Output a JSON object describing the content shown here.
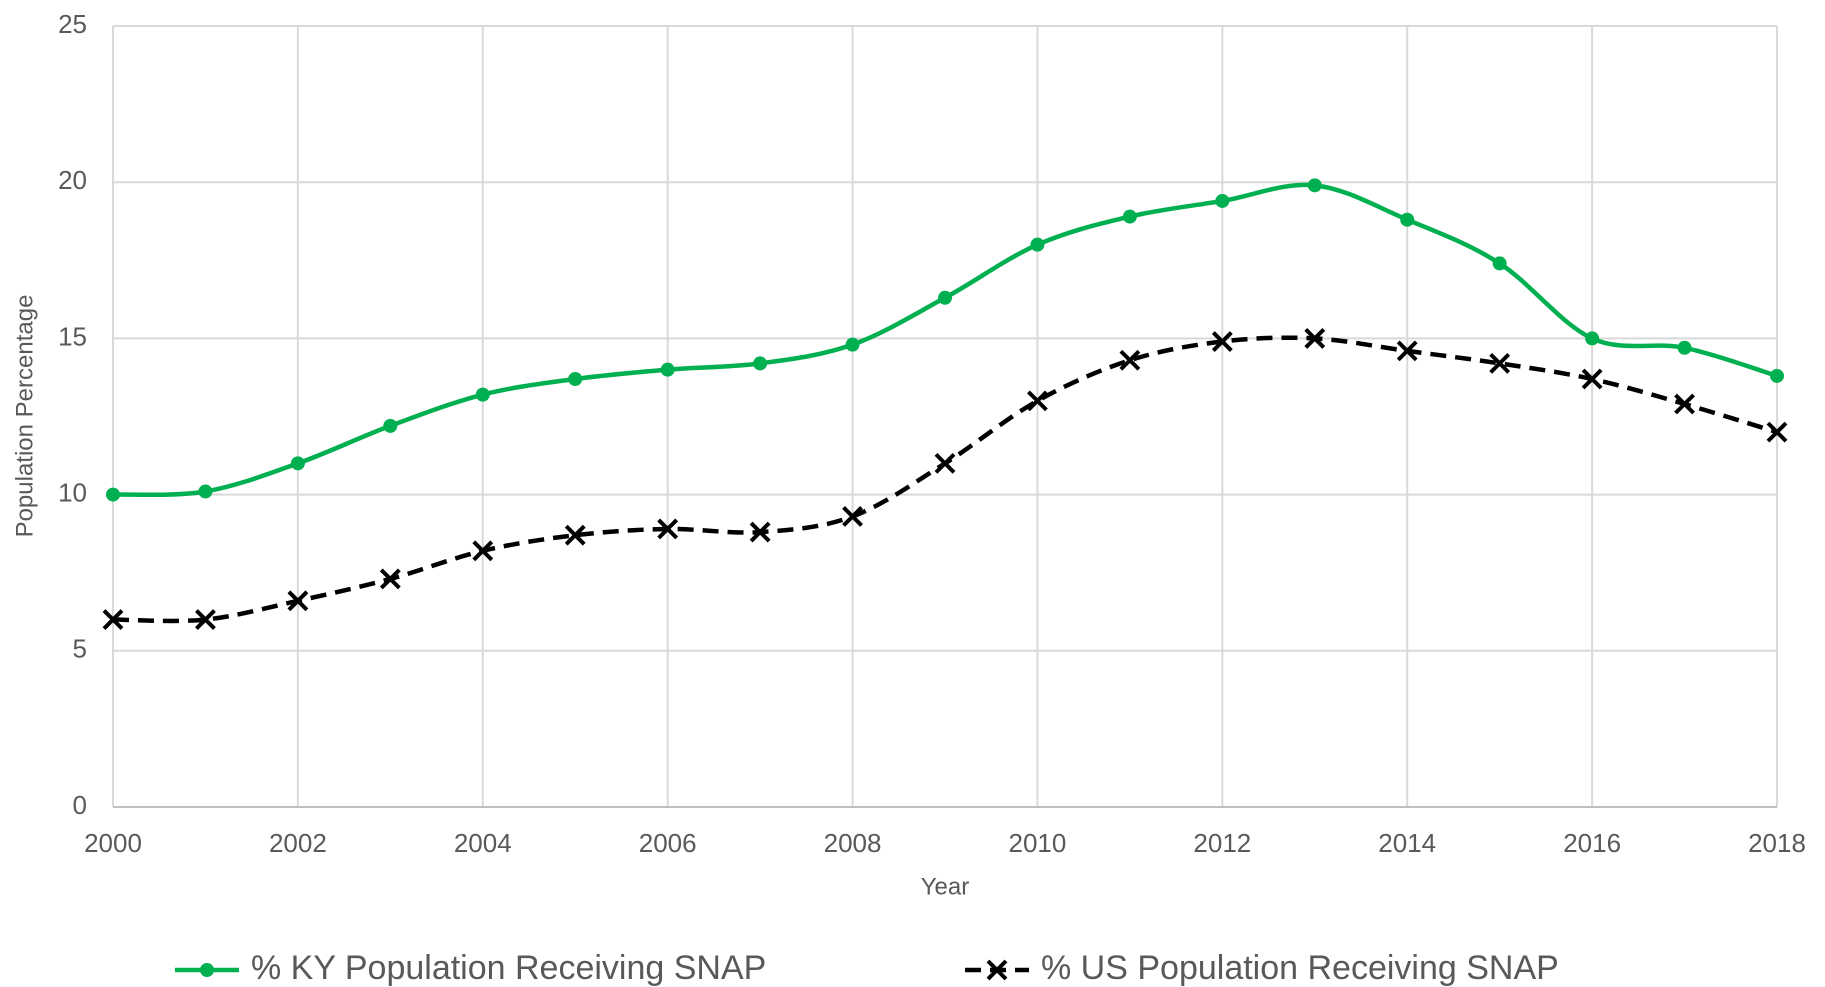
{
  "chart_data": {
    "type": "line",
    "x_label": "Year",
    "y_label": "Population Percentage",
    "x": [
      2000,
      2001,
      2002,
      2003,
      2004,
      2005,
      2006,
      2007,
      2008,
      2009,
      2010,
      2011,
      2012,
      2013,
      2014,
      2015,
      2016,
      2017,
      2018
    ],
    "series": [
      {
        "name": "% KY Population Receiving SNAP",
        "color": "#00b050",
        "marker": "circle",
        "dash": "solid",
        "smooth": true,
        "values": [
          10.0,
          10.1,
          11.0,
          12.2,
          13.2,
          13.7,
          14.0,
          14.2,
          14.8,
          16.3,
          18.0,
          18.9,
          19.4,
          19.9,
          18.8,
          17.4,
          15.0,
          14.7,
          13.8
        ]
      },
      {
        "name": "% US Population Receiving SNAP",
        "color": "#000000",
        "marker": "x",
        "dash": "dashed",
        "smooth": true,
        "values": [
          6.0,
          6.0,
          6.6,
          7.3,
          8.2,
          8.7,
          8.9,
          8.8,
          9.3,
          11.0,
          13.0,
          14.3,
          14.9,
          15.0,
          14.6,
          14.2,
          13.7,
          12.9,
          12.0
        ]
      }
    ],
    "xlim": [
      2000,
      2018
    ],
    "xticks": [
      2000,
      2002,
      2004,
      2006,
      2008,
      2010,
      2012,
      2014,
      2016,
      2018
    ],
    "ylim": [
      0,
      25
    ],
    "yticks": [
      0,
      5,
      10,
      15,
      20,
      25
    ],
    "grid": true,
    "legend": "bottom"
  }
}
